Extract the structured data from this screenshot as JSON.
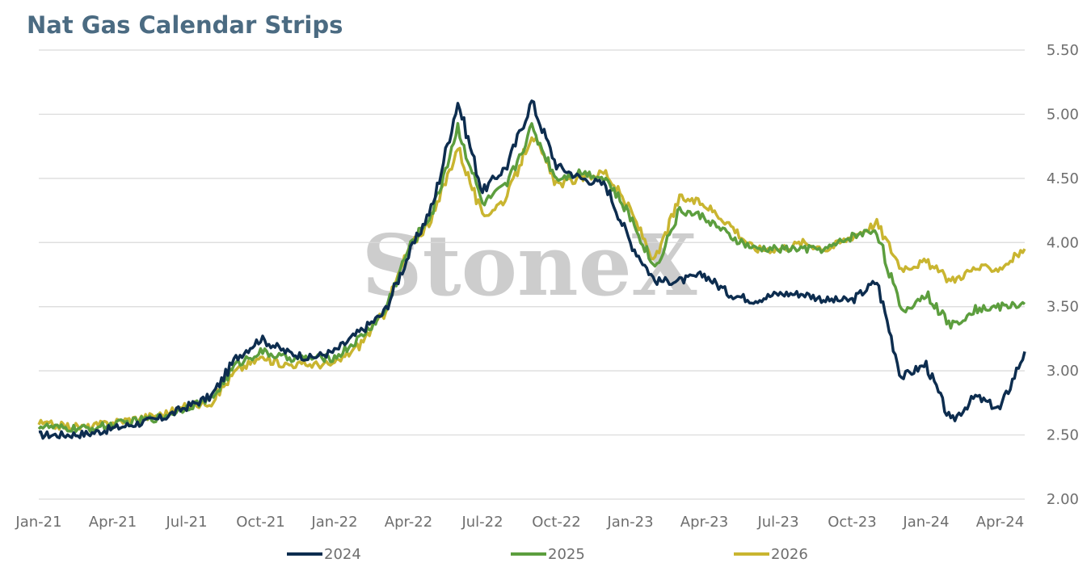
{
  "title": "Nat Gas Calendar Strips",
  "watermark": "StoneX",
  "chart_data": {
    "type": "line",
    "title": "Nat Gas Calendar Strips",
    "x_tick_labels": [
      "Jan-21",
      "Apr-21",
      "Jul-21",
      "Oct-21",
      "Jan-22",
      "Apr-22",
      "Jul-22",
      "Oct-22",
      "Jan-23",
      "Apr-23",
      "Jul-23",
      "Oct-23",
      "Jan-24",
      "Apr-24"
    ],
    "x_range": [
      "2021-01",
      "2024-05"
    ],
    "y_tick_labels": [
      "2.00",
      "2.50",
      "3.00",
      "3.50",
      "4.00",
      "4.50",
      "5.00",
      "5.50"
    ],
    "ylim": [
      2.0,
      5.5
    ],
    "y_axis_side": "right",
    "grid": "horizontal",
    "legend_position": "bottom",
    "x": [
      "2021-01",
      "2021-02",
      "2021-03",
      "2021-04",
      "2021-05",
      "2021-06",
      "2021-07",
      "2021-08",
      "2021-09",
      "2021-10",
      "2021-11",
      "2021-12",
      "2022-01",
      "2022-02",
      "2022-03",
      "2022-04",
      "2022-05",
      "2022-06",
      "2022-07",
      "2022-08",
      "2022-09",
      "2022-10",
      "2022-11",
      "2022-12",
      "2023-01",
      "2023-02",
      "2023-03",
      "2023-04",
      "2023-05",
      "2023-06",
      "2023-07",
      "2023-08",
      "2023-09",
      "2023-10",
      "2023-11",
      "2023-12",
      "2024-01",
      "2024-02",
      "2024-03",
      "2024-04",
      "2024-05"
    ],
    "series": [
      {
        "name": "2024",
        "color": "#0d2d4f",
        "values": [
          2.5,
          2.5,
          2.51,
          2.55,
          2.59,
          2.63,
          2.72,
          2.8,
          3.1,
          3.25,
          3.15,
          3.1,
          3.15,
          3.3,
          3.45,
          3.9,
          4.3,
          5.1,
          4.4,
          4.6,
          5.1,
          4.6,
          4.5,
          4.45,
          4.0,
          3.7,
          3.7,
          3.75,
          3.6,
          3.55,
          3.6,
          3.6,
          3.55,
          3.55,
          3.7,
          2.95,
          3.05,
          2.6,
          2.8,
          2.7,
          3.15
        ]
      },
      {
        "name": "2025",
        "color": "#5c9e3e",
        "values": [
          2.57,
          2.55,
          2.55,
          2.58,
          2.61,
          2.64,
          2.72,
          2.78,
          3.05,
          3.15,
          3.1,
          3.1,
          3.1,
          3.25,
          3.45,
          3.95,
          4.25,
          4.9,
          4.3,
          4.45,
          4.9,
          4.5,
          4.55,
          4.5,
          4.2,
          3.8,
          4.25,
          4.2,
          4.05,
          3.95,
          3.95,
          3.95,
          3.95,
          4.05,
          4.1,
          3.45,
          3.6,
          3.35,
          3.48,
          3.5,
          3.52
        ]
      },
      {
        "name": "2026",
        "color": "#c9b530",
        "values": [
          2.59,
          2.57,
          2.56,
          2.6,
          2.63,
          2.66,
          2.72,
          2.76,
          3.0,
          3.1,
          3.05,
          3.05,
          3.05,
          3.2,
          3.45,
          3.95,
          4.2,
          4.75,
          4.2,
          4.35,
          4.85,
          4.45,
          4.5,
          4.55,
          4.25,
          3.85,
          4.35,
          4.3,
          4.15,
          3.95,
          3.95,
          4.0,
          3.95,
          4.05,
          4.15,
          3.8,
          3.85,
          3.7,
          3.8,
          3.8,
          3.95
        ]
      }
    ]
  }
}
